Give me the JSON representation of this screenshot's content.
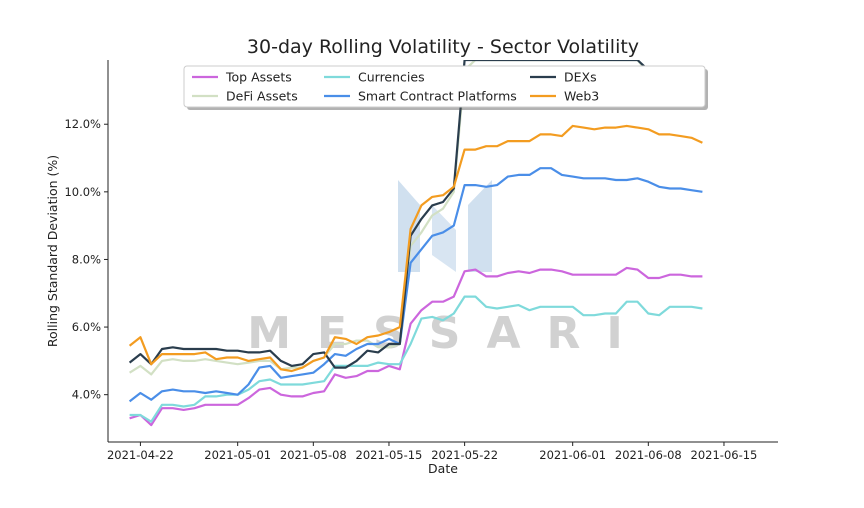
{
  "chart_data": {
    "type": "line",
    "title": "30-day Rolling Volatility - Sector Volatility",
    "xlabel": "Date",
    "ylabel": "Rolling Standard Deviation (%)",
    "watermark": "MESSARI",
    "x_start": "2021-04-21",
    "x_range": [
      "2021-04-19",
      "2021-06-20"
    ],
    "ylim": [
      2.6,
      13.9
    ],
    "grid": false,
    "legend_position": "top",
    "x_ticks": [
      {
        "date": "2021-04-22",
        "label": "2021-04-22"
      },
      {
        "date": "2021-05-01",
        "label": "2021-05-01"
      },
      {
        "date": "2021-05-08",
        "label": "2021-05-08"
      },
      {
        "date": "2021-05-15",
        "label": "2021-05-15"
      },
      {
        "date": "2021-05-22",
        "label": "2021-05-22"
      },
      {
        "date": "2021-06-01",
        "label": "2021-06-01"
      },
      {
        "date": "2021-06-08",
        "label": "2021-06-08"
      },
      {
        "date": "2021-06-15",
        "label": "2021-06-15"
      }
    ],
    "y_ticks": [
      {
        "value": 4,
        "label": "4.0%"
      },
      {
        "value": 6,
        "label": "6.0%"
      },
      {
        "value": 8,
        "label": "8.0%"
      },
      {
        "value": 10,
        "label": "10.0%"
      },
      {
        "value": 12,
        "label": "12.0%"
      }
    ],
    "series": [
      {
        "name": "Top Assets",
        "color": "#cc66dd",
        "values": [
          3.3,
          3.4,
          3.1,
          3.6,
          3.6,
          3.55,
          3.6,
          3.7,
          3.7,
          3.7,
          3.7,
          3.9,
          4.15,
          4.2,
          4.0,
          3.95,
          3.95,
          4.05,
          4.1,
          4.6,
          4.5,
          4.55,
          4.7,
          4.7,
          4.85,
          4.75,
          6.1,
          6.5,
          6.75,
          6.75,
          6.9,
          7.65,
          7.7,
          7.5,
          7.5,
          7.6,
          7.65,
          7.6,
          7.7,
          7.7,
          7.65,
          7.55,
          7.55,
          7.55,
          7.55,
          7.55,
          7.75,
          7.7,
          7.45,
          7.45,
          7.55,
          7.55,
          7.5,
          7.5
        ]
      },
      {
        "name": "DeFi Assets",
        "color": "#d2e0c4",
        "values": [
          4.65,
          4.85,
          4.6,
          5.0,
          5.05,
          5.0,
          5.0,
          5.05,
          5.0,
          4.95,
          4.9,
          4.95,
          5.0,
          5.0,
          4.75,
          4.8,
          4.8,
          5.0,
          5.1,
          5.5,
          5.5,
          5.6,
          5.6,
          5.4,
          5.4,
          5.5,
          8.4,
          8.8,
          9.3,
          9.5,
          10.0,
          13.6,
          13.9,
          13.9,
          13.9,
          13.9,
          13.9,
          13.9,
          13.9,
          13.9,
          13.9,
          13.9,
          13.9,
          13.9,
          13.9,
          13.9,
          13.9,
          13.9,
          13.5,
          13.4,
          13.35,
          13.3,
          13.3,
          13.25
        ]
      },
      {
        "name": "Currencies",
        "color": "#7fdadb",
        "values": [
          3.4,
          3.4,
          3.2,
          3.7,
          3.7,
          3.65,
          3.7,
          3.95,
          3.95,
          4.0,
          4.0,
          4.15,
          4.4,
          4.45,
          4.3,
          4.3,
          4.3,
          4.35,
          4.4,
          4.85,
          4.85,
          4.85,
          4.85,
          4.95,
          4.9,
          4.9,
          5.5,
          6.25,
          6.3,
          6.2,
          6.4,
          6.9,
          6.9,
          6.6,
          6.55,
          6.6,
          6.65,
          6.5,
          6.6,
          6.6,
          6.6,
          6.6,
          6.35,
          6.35,
          6.4,
          6.4,
          6.75,
          6.75,
          6.4,
          6.35,
          6.6,
          6.6,
          6.6,
          6.55
        ]
      },
      {
        "name": "Smart Contract Platforms",
        "color": "#4a8ee8",
        "values": [
          3.8,
          4.05,
          3.85,
          4.1,
          4.15,
          4.1,
          4.1,
          4.05,
          4.1,
          4.05,
          4.0,
          4.3,
          4.8,
          4.85,
          4.5,
          4.55,
          4.6,
          4.65,
          4.9,
          5.2,
          5.15,
          5.35,
          5.5,
          5.5,
          5.65,
          5.5,
          7.9,
          8.3,
          8.7,
          8.8,
          9.0,
          10.2,
          10.2,
          10.15,
          10.2,
          10.45,
          10.5,
          10.5,
          10.7,
          10.7,
          10.5,
          10.45,
          10.4,
          10.4,
          10.4,
          10.35,
          10.35,
          10.4,
          10.3,
          10.15,
          10.1,
          10.1,
          10.05,
          10.0
        ]
      },
      {
        "name": "DEXs",
        "color": "#2a3d4d",
        "values": [
          4.95,
          5.2,
          4.9,
          5.35,
          5.4,
          5.35,
          5.35,
          5.35,
          5.35,
          5.3,
          5.3,
          5.25,
          5.25,
          5.3,
          5.0,
          4.85,
          4.9,
          5.2,
          5.25,
          4.8,
          4.8,
          5.0,
          5.3,
          5.25,
          5.5,
          5.5,
          8.7,
          9.2,
          9.6,
          9.7,
          10.1,
          13.9,
          13.9,
          13.9,
          13.9,
          13.9,
          13.9,
          13.9,
          13.9,
          13.9,
          13.9,
          13.9,
          13.9,
          13.9,
          13.9,
          13.9,
          13.9,
          13.9,
          13.6,
          13.45,
          13.3,
          13.25,
          13.2,
          13.1
        ]
      },
      {
        "name": "Web3",
        "color": "#f39c20",
        "values": [
          5.45,
          5.7,
          4.9,
          5.2,
          5.2,
          5.2,
          5.2,
          5.25,
          5.05,
          5.1,
          5.1,
          5.0,
          5.05,
          5.1,
          4.75,
          4.7,
          4.8,
          5.0,
          5.1,
          5.7,
          5.65,
          5.5,
          5.7,
          5.75,
          5.85,
          6.0,
          8.9,
          9.6,
          9.85,
          9.9,
          10.15,
          11.25,
          11.25,
          11.35,
          11.35,
          11.5,
          11.5,
          11.5,
          11.7,
          11.7,
          11.65,
          11.95,
          11.9,
          11.85,
          11.9,
          11.9,
          11.95,
          11.9,
          11.85,
          11.7,
          11.7,
          11.65,
          11.6,
          11.45
        ]
      }
    ]
  }
}
